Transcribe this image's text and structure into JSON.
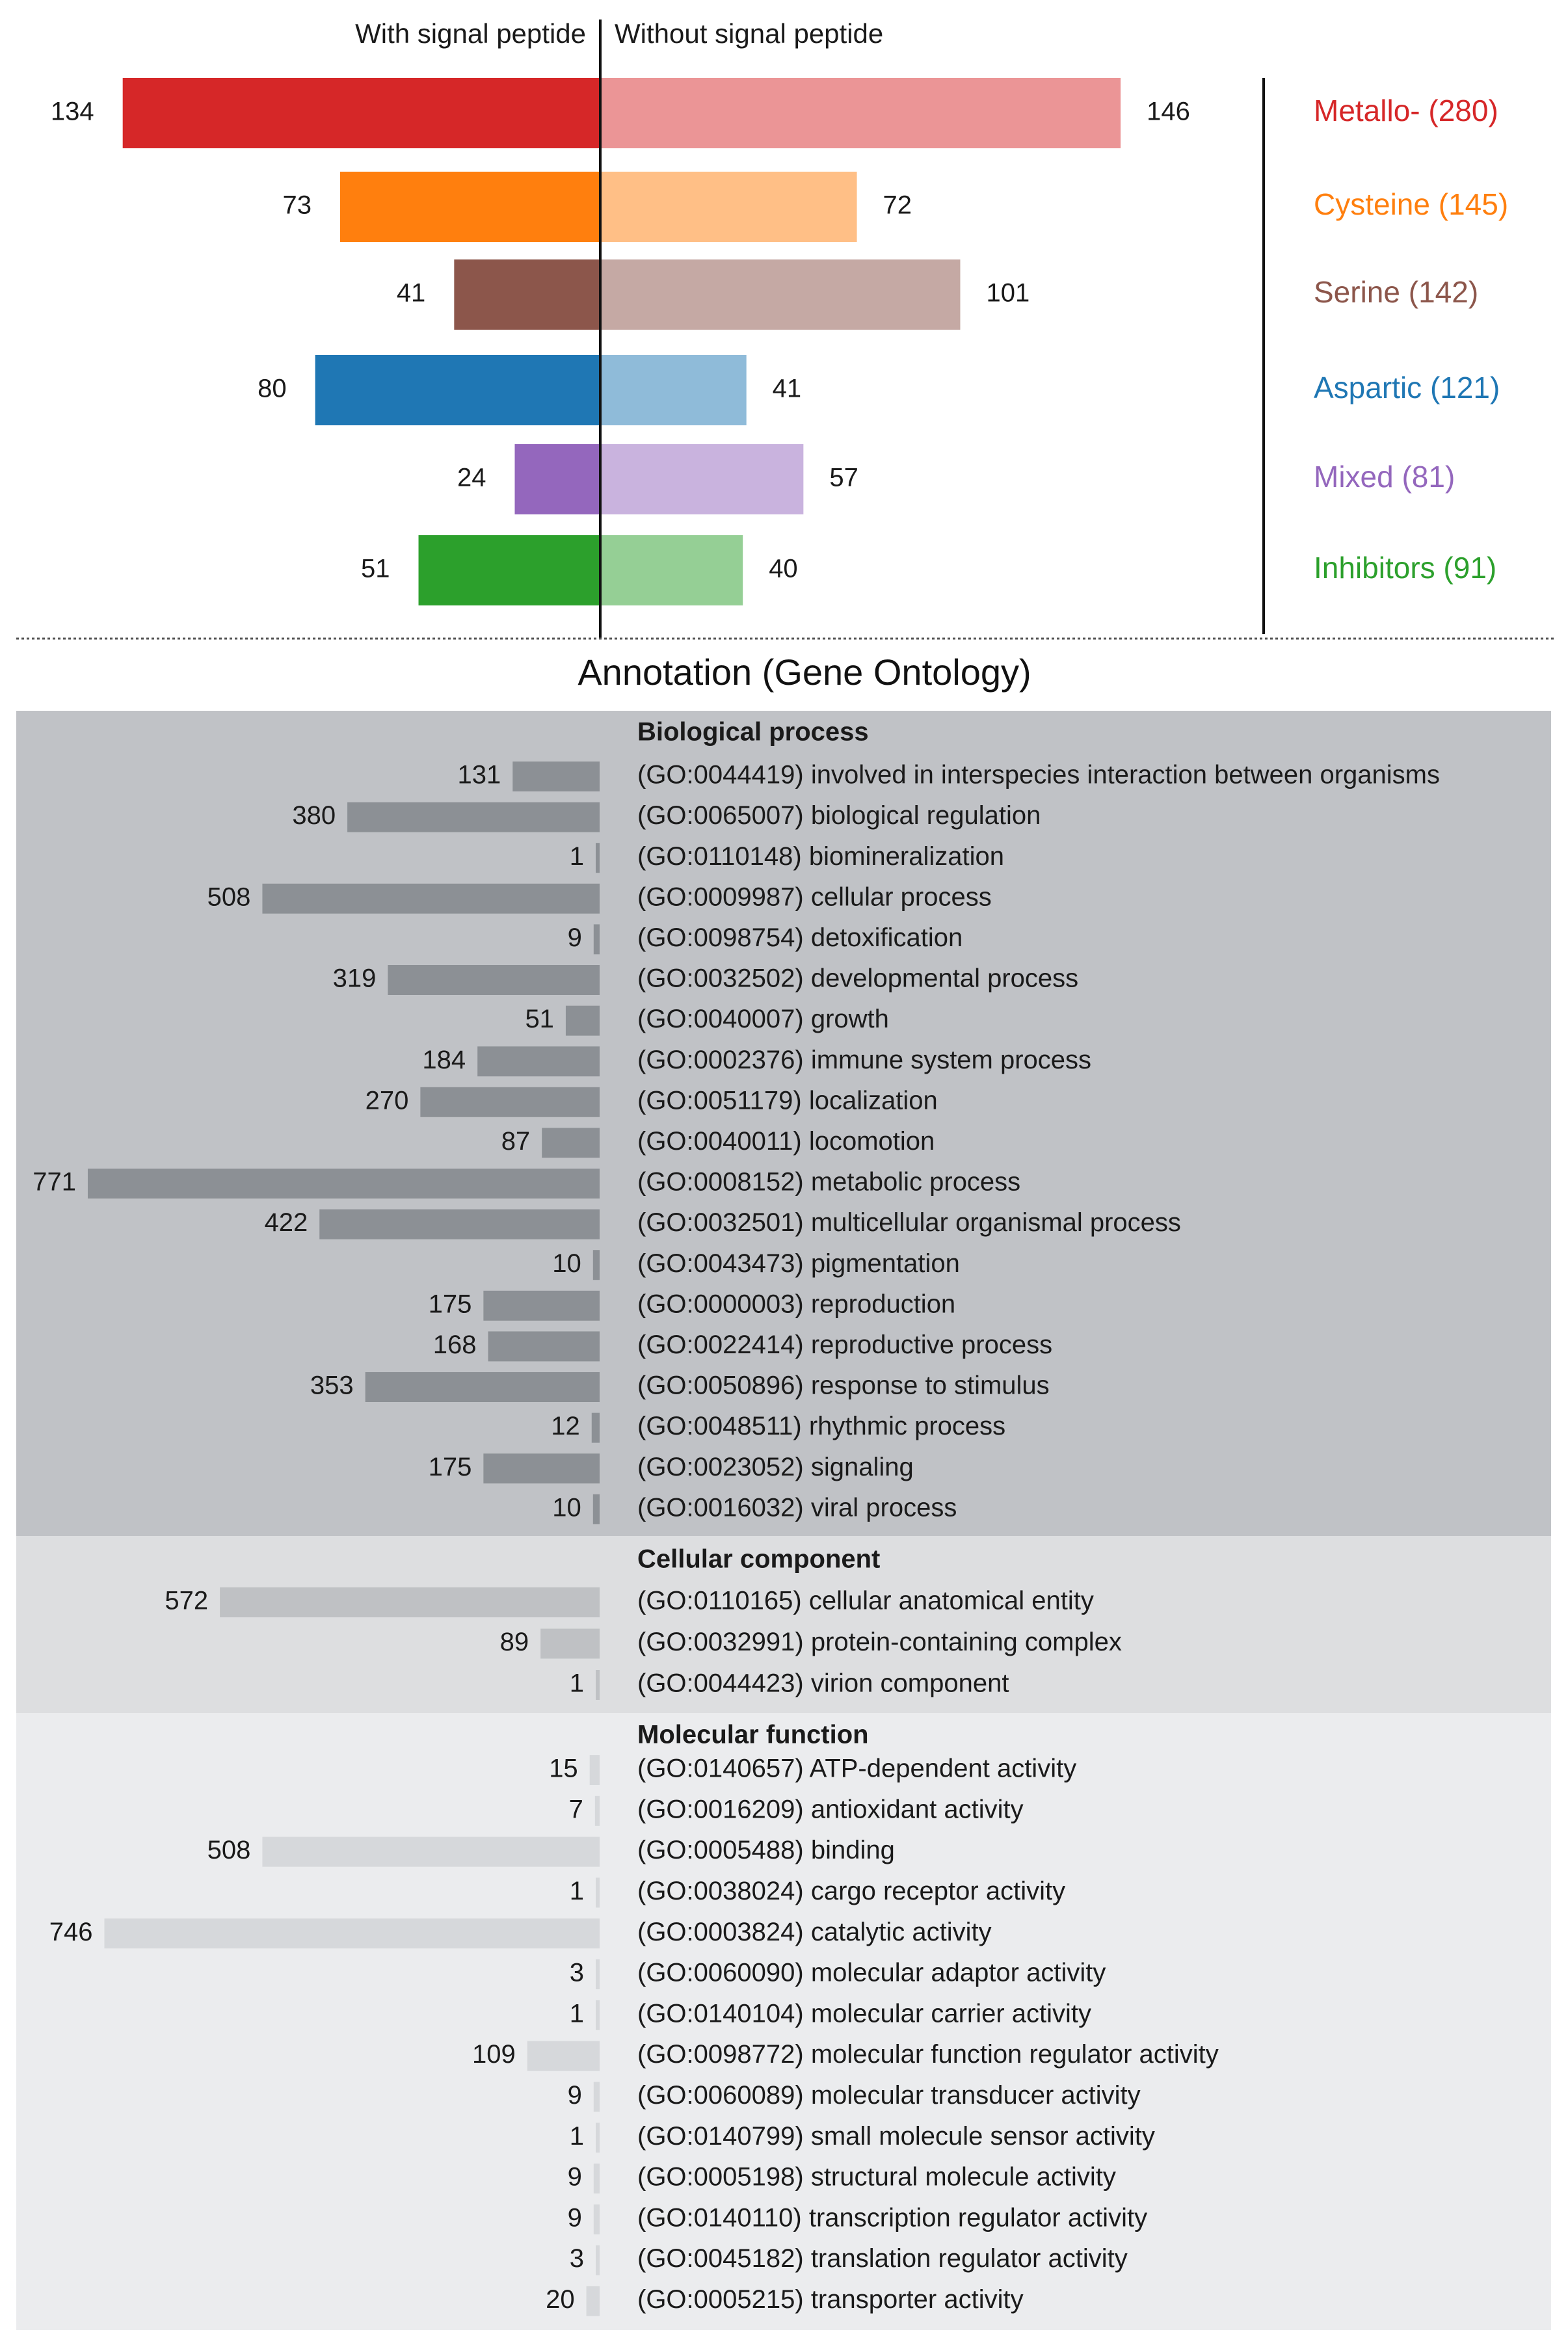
{
  "chart_data": [
    {
      "type": "bar",
      "orientation": "diverging-horizontal",
      "left_header": "With signal peptide",
      "right_header": "Without signal peptide",
      "categories": [
        {
          "label": "Metallo- (280)",
          "with": 134,
          "without": 146,
          "color": "#d62728",
          "light": "#eb9596"
        },
        {
          "label": "Cysteine (145)",
          "with": 73,
          "without": 72,
          "color": "#ff7f0e",
          "light": "#ffbf86"
        },
        {
          "label": "Serine (142)",
          "with": 41,
          "without": 101,
          "color": "#8c564b",
          "light": "#c5a9a4"
        },
        {
          "label": "Aspartic (121)",
          "with": 80,
          "without": 41,
          "color": "#1f77b4",
          "light": "#8fbbd9"
        },
        {
          "label": "Mixed (81)",
          "with": 24,
          "without": 57,
          "color": "#9467bd",
          "light": "#c9b3de"
        },
        {
          "label": "Inhibitors (91)",
          "with": 51,
          "without": 40,
          "color": "#2ca02c",
          "light": "#95cf95"
        }
      ]
    },
    {
      "type": "bar",
      "orientation": "horizontal",
      "title": "Annotation (Gene Ontology)",
      "sections": [
        {
          "name": "Biological process",
          "bg": "#c0c2c6",
          "bar": "#8c9095",
          "items": [
            {
              "term": "(GO:0044419) involved in interspecies interaction between organisms",
              "value": 131
            },
            {
              "term": "(GO:0065007) biological regulation",
              "value": 380
            },
            {
              "term": "(GO:0110148) biomineralization",
              "value": 1
            },
            {
              "term": "(GO:0009987) cellular process",
              "value": 508
            },
            {
              "term": "(GO:0098754) detoxification",
              "value": 9
            },
            {
              "term": "(GO:0032502) developmental process",
              "value": 319
            },
            {
              "term": "(GO:0040007) growth",
              "value": 51
            },
            {
              "term": "(GO:0002376) immune system process",
              "value": 184
            },
            {
              "term": "(GO:0051179) localization",
              "value": 270
            },
            {
              "term": "(GO:0040011) locomotion",
              "value": 87
            },
            {
              "term": "(GO:0008152) metabolic process",
              "value": 771
            },
            {
              "term": "(GO:0032501) multicellular organismal process",
              "value": 422
            },
            {
              "term": "(GO:0043473) pigmentation",
              "value": 10
            },
            {
              "term": "(GO:0000003) reproduction",
              "value": 175
            },
            {
              "term": "(GO:0022414) reproductive process",
              "value": 168
            },
            {
              "term": "(GO:0050896) response to stimulus",
              "value": 353
            },
            {
              "term": "(GO:0048511) rhythmic process",
              "value": 12
            },
            {
              "term": "(GO:0023052) signaling",
              "value": 175
            },
            {
              "term": "(GO:0016032) viral process",
              "value": 10
            }
          ]
        },
        {
          "name": "Cellular component",
          "bg": "#dddee0",
          "bar": "#bfc1c4",
          "items": [
            {
              "term": "(GO:0110165) cellular anatomical entity",
              "value": 572
            },
            {
              "term": "(GO:0032991) protein-containing complex",
              "value": 89
            },
            {
              "term": "(GO:0044423) virion component",
              "value": 1
            }
          ]
        },
        {
          "name": "Molecular function",
          "bg": "#ebecee",
          "bar": "#d6d8db",
          "items": [
            {
              "term": "(GO:0140657) ATP-dependent activity",
              "value": 15
            },
            {
              "term": "(GO:0016209) antioxidant activity",
              "value": 7
            },
            {
              "term": "(GO:0005488) binding",
              "value": 508
            },
            {
              "term": "(GO:0038024) cargo receptor activity",
              "value": 1
            },
            {
              "term": "(GO:0003824) catalytic activity",
              "value": 746
            },
            {
              "term": "(GO:0060090) molecular adaptor activity",
              "value": 3
            },
            {
              "term": "(GO:0140104) molecular carrier activity",
              "value": 1
            },
            {
              "term": "(GO:0098772) molecular function regulator activity",
              "value": 109
            },
            {
              "term": "(GO:0060089) molecular transducer activity",
              "value": 9
            },
            {
              "term": "(GO:0140799) small molecule sensor activity",
              "value": 1
            },
            {
              "term": "(GO:0005198) structural molecule activity",
              "value": 9
            },
            {
              "term": "(GO:0140110) transcription regulator activity",
              "value": 9
            },
            {
              "term": "(GO:0045182) translation regulator activity",
              "value": 3
            },
            {
              "term": "(GO:0005215) transporter activity",
              "value": 20
            }
          ]
        }
      ]
    }
  ]
}
